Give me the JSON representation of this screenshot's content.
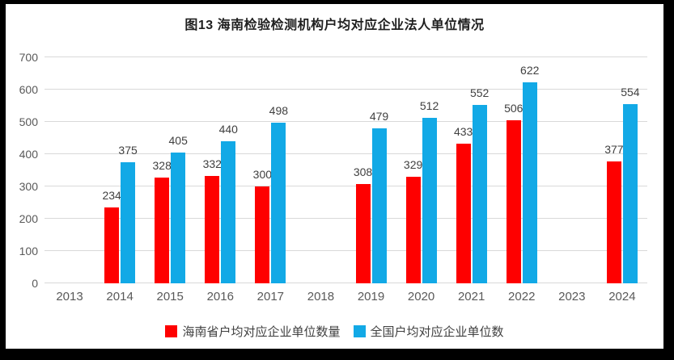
{
  "chart_data": {
    "type": "bar",
    "title": "图13 海南检验检测机构户均对应企业法人单位情况",
    "categories": [
      "2013",
      "2014",
      "2015",
      "2016",
      "2017",
      "2018",
      "2019",
      "2020",
      "2021",
      "2022",
      "2023",
      "2024"
    ],
    "series": [
      {
        "name": "海南省户均对应企业单位数量",
        "color": "#fe0000",
        "values": [
          null,
          234,
          328,
          332,
          300,
          null,
          308,
          329,
          433,
          506,
          null,
          377
        ]
      },
      {
        "name": "全国户均对应企业单位数",
        "color": "#12a9e6",
        "values": [
          null,
          375,
          405,
          440,
          498,
          null,
          479,
          512,
          552,
          622,
          null,
          554
        ]
      }
    ],
    "xlabel": "",
    "ylabel": "",
    "ylim": [
      0,
      700
    ],
    "yticks": [
      0,
      100,
      200,
      300,
      400,
      500,
      600,
      700
    ],
    "grid": true,
    "data_labels": true,
    "legend_position": "bottom"
  },
  "colors": {
    "frame_background": "#000000",
    "plot_background": "#ffffff",
    "gridline": "#d9d9d9",
    "tick_text": "#595959",
    "data_label_text": "#404040",
    "title_text": "#1f1f1f"
  }
}
